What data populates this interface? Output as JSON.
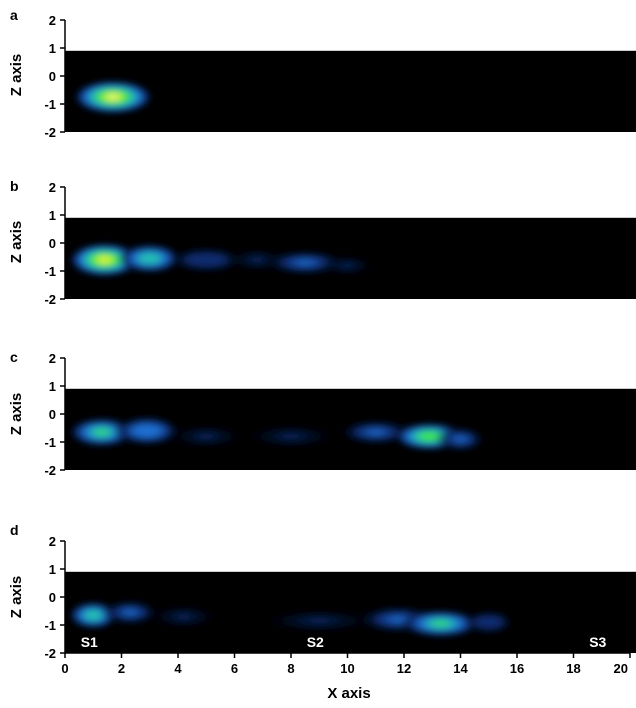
{
  "chart_data": {
    "type": "heatmap",
    "xlabel": "X axis",
    "ylabel": "Z axis",
    "xlim": [
      0,
      20
    ],
    "ylim": [
      -2,
      2
    ],
    "x_ticks": [
      "0",
      "2",
      "4",
      "6",
      "8",
      "10",
      "12",
      "14",
      "16",
      "18",
      "20"
    ],
    "y_ticks": [
      "2",
      "1",
      "0",
      "-1",
      "-2"
    ],
    "data_region_z": [
      -2,
      0.9
    ],
    "colormap": [
      "#000000",
      "#0b2a6e",
      "#1f6fd1",
      "#23c0b0",
      "#3ee63a",
      "#d8f43a",
      "#ffffc8"
    ],
    "shared_x_axis": true,
    "panels": [
      {
        "label": "a",
        "blobs": [
          {
            "x": 1.7,
            "z": -0.75,
            "sx": 0.95,
            "sz": 0.4,
            "intensity": 1.0
          }
        ]
      },
      {
        "label": "b",
        "blobs": [
          {
            "x": 1.4,
            "z": -0.6,
            "sx": 0.85,
            "sz": 0.4,
            "intensity": 0.85
          },
          {
            "x": 3.0,
            "z": -0.55,
            "sx": 0.75,
            "sz": 0.35,
            "intensity": 0.55
          },
          {
            "x": 5.0,
            "z": -0.6,
            "sx": 0.9,
            "sz": 0.3,
            "intensity": 0.18
          },
          {
            "x": 6.8,
            "z": -0.6,
            "sx": 0.8,
            "sz": 0.3,
            "intensity": 0.15
          },
          {
            "x": 8.5,
            "z": -0.7,
            "sx": 1.0,
            "sz": 0.3,
            "intensity": 0.25
          },
          {
            "x": 10.0,
            "z": -0.8,
            "sx": 0.7,
            "sz": 0.25,
            "intensity": 0.12
          }
        ]
      },
      {
        "label": "c",
        "blobs": [
          {
            "x": 1.3,
            "z": -0.65,
            "sx": 0.8,
            "sz": 0.35,
            "intensity": 0.6
          },
          {
            "x": 2.9,
            "z": -0.6,
            "sx": 0.8,
            "sz": 0.35,
            "intensity": 0.38
          },
          {
            "x": 5.0,
            "z": -0.8,
            "sx": 1.0,
            "sz": 0.3,
            "intensity": 0.12
          },
          {
            "x": 8.0,
            "z": -0.8,
            "sx": 1.2,
            "sz": 0.3,
            "intensity": 0.1
          },
          {
            "x": 11.0,
            "z": -0.65,
            "sx": 0.9,
            "sz": 0.3,
            "intensity": 0.25
          },
          {
            "x": 12.9,
            "z": -0.8,
            "sx": 0.85,
            "sz": 0.33,
            "intensity": 0.7
          },
          {
            "x": 14.0,
            "z": -0.9,
            "sx": 0.6,
            "sz": 0.3,
            "intensity": 0.25
          }
        ]
      },
      {
        "label": "d",
        "blobs": [
          {
            "x": 1.0,
            "z": -0.65,
            "sx": 0.6,
            "sz": 0.33,
            "intensity": 0.55
          },
          {
            "x": 2.3,
            "z": -0.55,
            "sx": 0.7,
            "sz": 0.3,
            "intensity": 0.28
          },
          {
            "x": 4.2,
            "z": -0.7,
            "sx": 0.9,
            "sz": 0.3,
            "intensity": 0.1
          },
          {
            "x": 9.0,
            "z": -0.85,
            "sx": 1.5,
            "sz": 0.3,
            "intensity": 0.12
          },
          {
            "x": 11.8,
            "z": -0.8,
            "sx": 1.0,
            "sz": 0.33,
            "intensity": 0.3
          },
          {
            "x": 13.3,
            "z": -0.95,
            "sx": 0.95,
            "sz": 0.33,
            "intensity": 0.62
          },
          {
            "x": 15.0,
            "z": -0.9,
            "sx": 0.6,
            "sz": 0.28,
            "intensity": 0.18
          }
        ],
        "annotations": [
          {
            "text": "S1",
            "x": 1.0,
            "z": -1.6
          },
          {
            "text": "S2",
            "x": 9.0,
            "z": -1.6
          },
          {
            "text": "S3",
            "x": 19.0,
            "z": -1.6
          }
        ]
      }
    ]
  }
}
